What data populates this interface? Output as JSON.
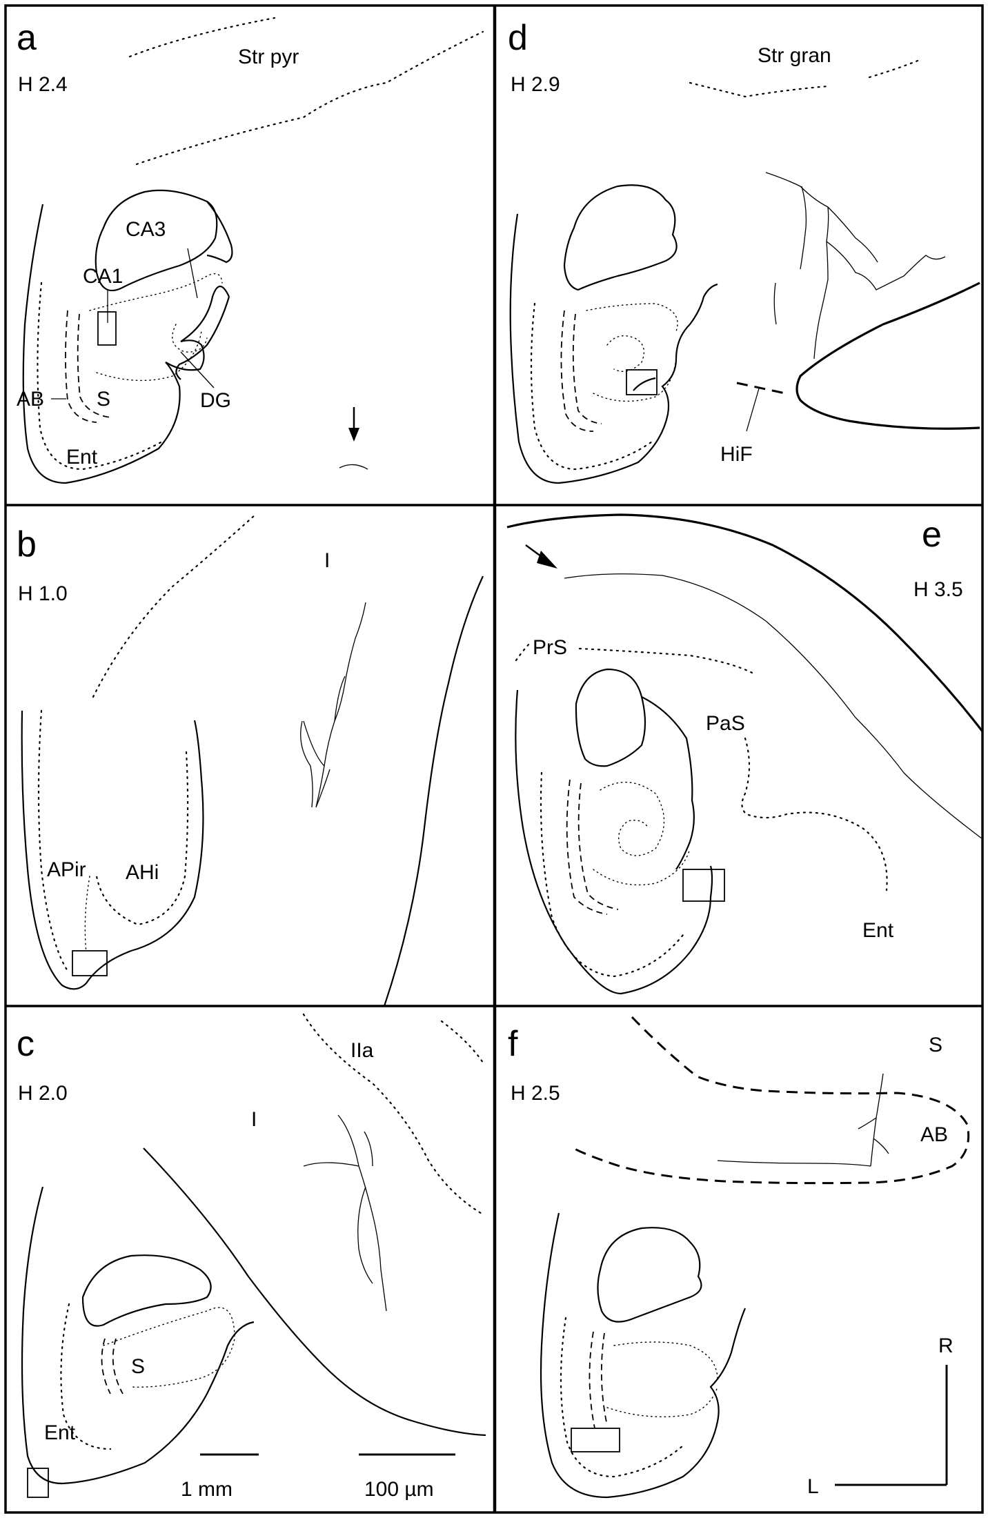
{
  "panels": {
    "a": {
      "letter": "a",
      "level": "H 2.4",
      "labels": {
        "layer": "Str pyr",
        "ca3": "CA3",
        "ca1": "CA1",
        "ab": "AB",
        "s": "S",
        "dg": "DG",
        "ent": "Ent"
      }
    },
    "b": {
      "letter": "b",
      "level": "H 1.0",
      "labels": {
        "layer": "I",
        "apir": "APir",
        "ahi": "AHi"
      }
    },
    "c": {
      "letter": "c",
      "level": "H 2.0",
      "labels": {
        "layer1": "IIa",
        "layer2": "I",
        "s": "S",
        "ent": "Ent"
      }
    },
    "d": {
      "letter": "d",
      "level": "H 2.9",
      "labels": {
        "layer": "Str gran",
        "hif": "HiF"
      }
    },
    "e": {
      "letter": "e",
      "level": "H 3.5",
      "labels": {
        "prs": "PrS",
        "pas": "PaS",
        "ent": "Ent"
      }
    },
    "f": {
      "letter": "f",
      "level": "H 2.5",
      "labels": {
        "s": "S",
        "ab": "AB"
      }
    }
  },
  "scale_bars": {
    "overview": "1 mm",
    "detail": "100 µm"
  },
  "orientation": {
    "rostral": "R",
    "lateral": "L"
  }
}
